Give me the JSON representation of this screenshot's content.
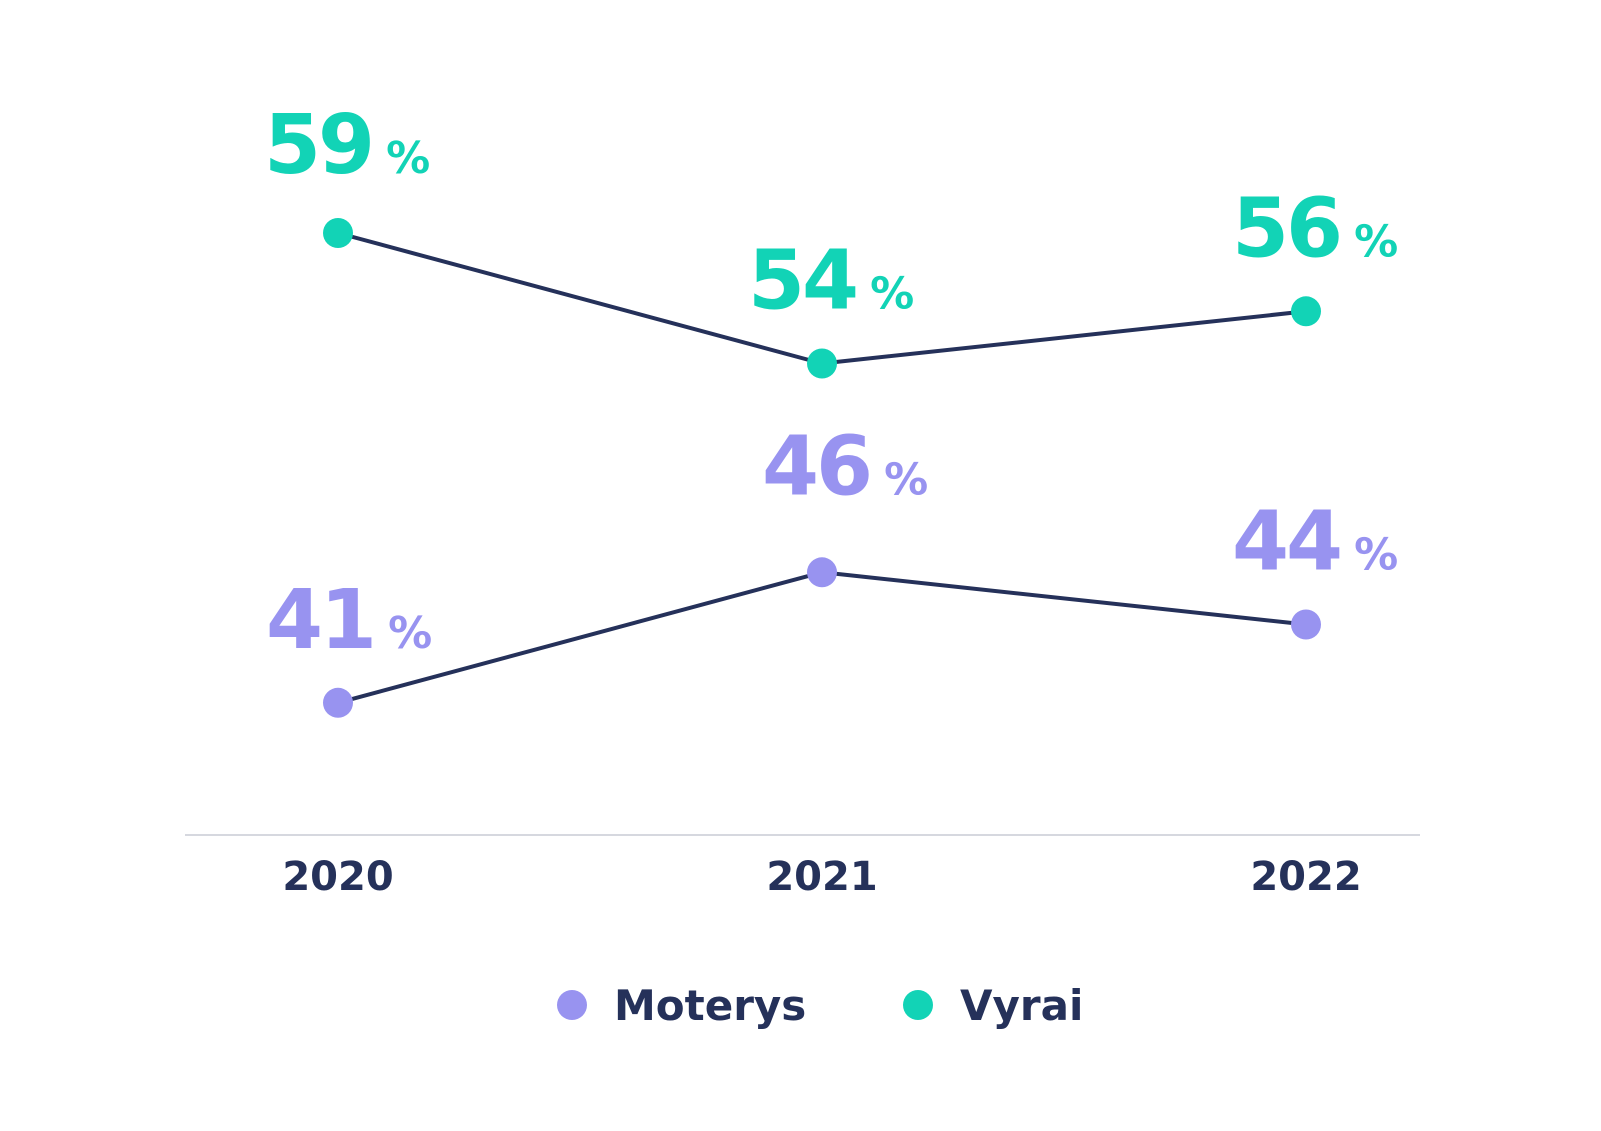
{
  "chart_data": {
    "type": "line",
    "categories": [
      "2020",
      "2021",
      "2022"
    ],
    "series": [
      {
        "name": "Moterys",
        "values": [
          41,
          46,
          44
        ],
        "color": "#9893f0"
      },
      {
        "name": "Vyrai",
        "values": [
          59,
          54,
          56
        ],
        "color": "#12d3b6"
      }
    ],
    "value_suffix": "%",
    "line_color": "#25315a",
    "axis_color": "#d6d8df",
    "legend_position": "bottom-center",
    "grid": false,
    "ylim": [
      30,
      62
    ]
  }
}
